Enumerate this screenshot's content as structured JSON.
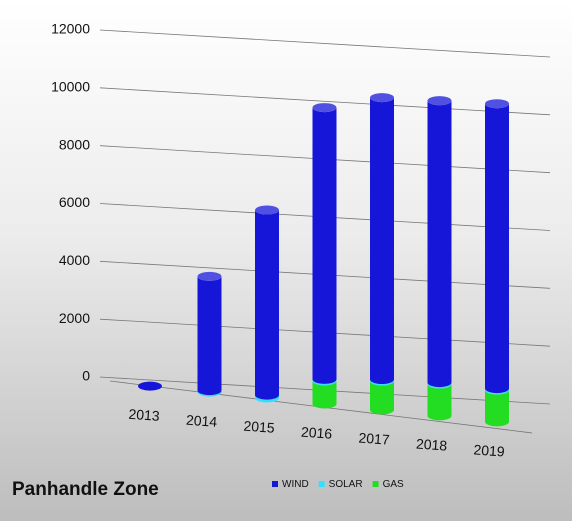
{
  "chart_data": {
    "type": "bar",
    "stacked": true,
    "title": "Panhandle Zone",
    "categories": [
      "2013",
      "2014",
      "2015",
      "2016",
      "2017",
      "2018",
      "2019"
    ],
    "series": [
      {
        "name": "WIND",
        "color": "#1616d8",
        "values": [
          0,
          3950,
          6400,
          9400,
          9750,
          9750,
          9850
        ]
      },
      {
        "name": "SOLAR",
        "color": "#33e0ff",
        "values": [
          0,
          50,
          100,
          50,
          50,
          50,
          50
        ]
      },
      {
        "name": "GAS",
        "color": "#22dd22",
        "values": [
          0,
          0,
          0,
          800,
          1000,
          1100,
          1100
        ]
      }
    ],
    "ylim": [
      0,
      12000
    ],
    "yticks": [
      0,
      2000,
      4000,
      6000,
      8000,
      10000,
      12000
    ],
    "grid": true,
    "legend": "bottom"
  }
}
